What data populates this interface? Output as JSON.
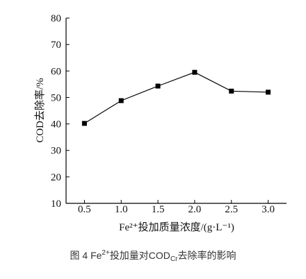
{
  "figure": {
    "caption": {
      "prefix": "图 4 Fe",
      "sup": "2+",
      "middle": "投加量对COD",
      "sub": "Cr",
      "suffix": "去除率的影响"
    }
  },
  "colors": {
    "axis": "#000000",
    "caption_text": "#333333"
  },
  "chart_data": {
    "type": "line",
    "x": [
      0.5,
      1.0,
      1.5,
      2.0,
      2.5,
      3.0
    ],
    "series": [
      {
        "values": [
          40.2,
          48.8,
          54.3,
          59.5,
          52.4,
          52.0
        ],
        "color": "#000000"
      }
    ],
    "xlabel": "Fe²⁺投加质量浓度/(g·L⁻¹)",
    "ylabel": "COD去除率/%",
    "xtick_labels": [
      "0.5",
      "1.0",
      "1.5",
      "2.0",
      "2.5",
      "3.0"
    ],
    "ytick_labels": [
      "10",
      "20",
      "30",
      "40",
      "50",
      "60",
      "70",
      "80"
    ],
    "xlim": [
      0.25,
      3.25
    ],
    "ylim": [
      10,
      80
    ],
    "grid": false,
    "legend": false
  }
}
